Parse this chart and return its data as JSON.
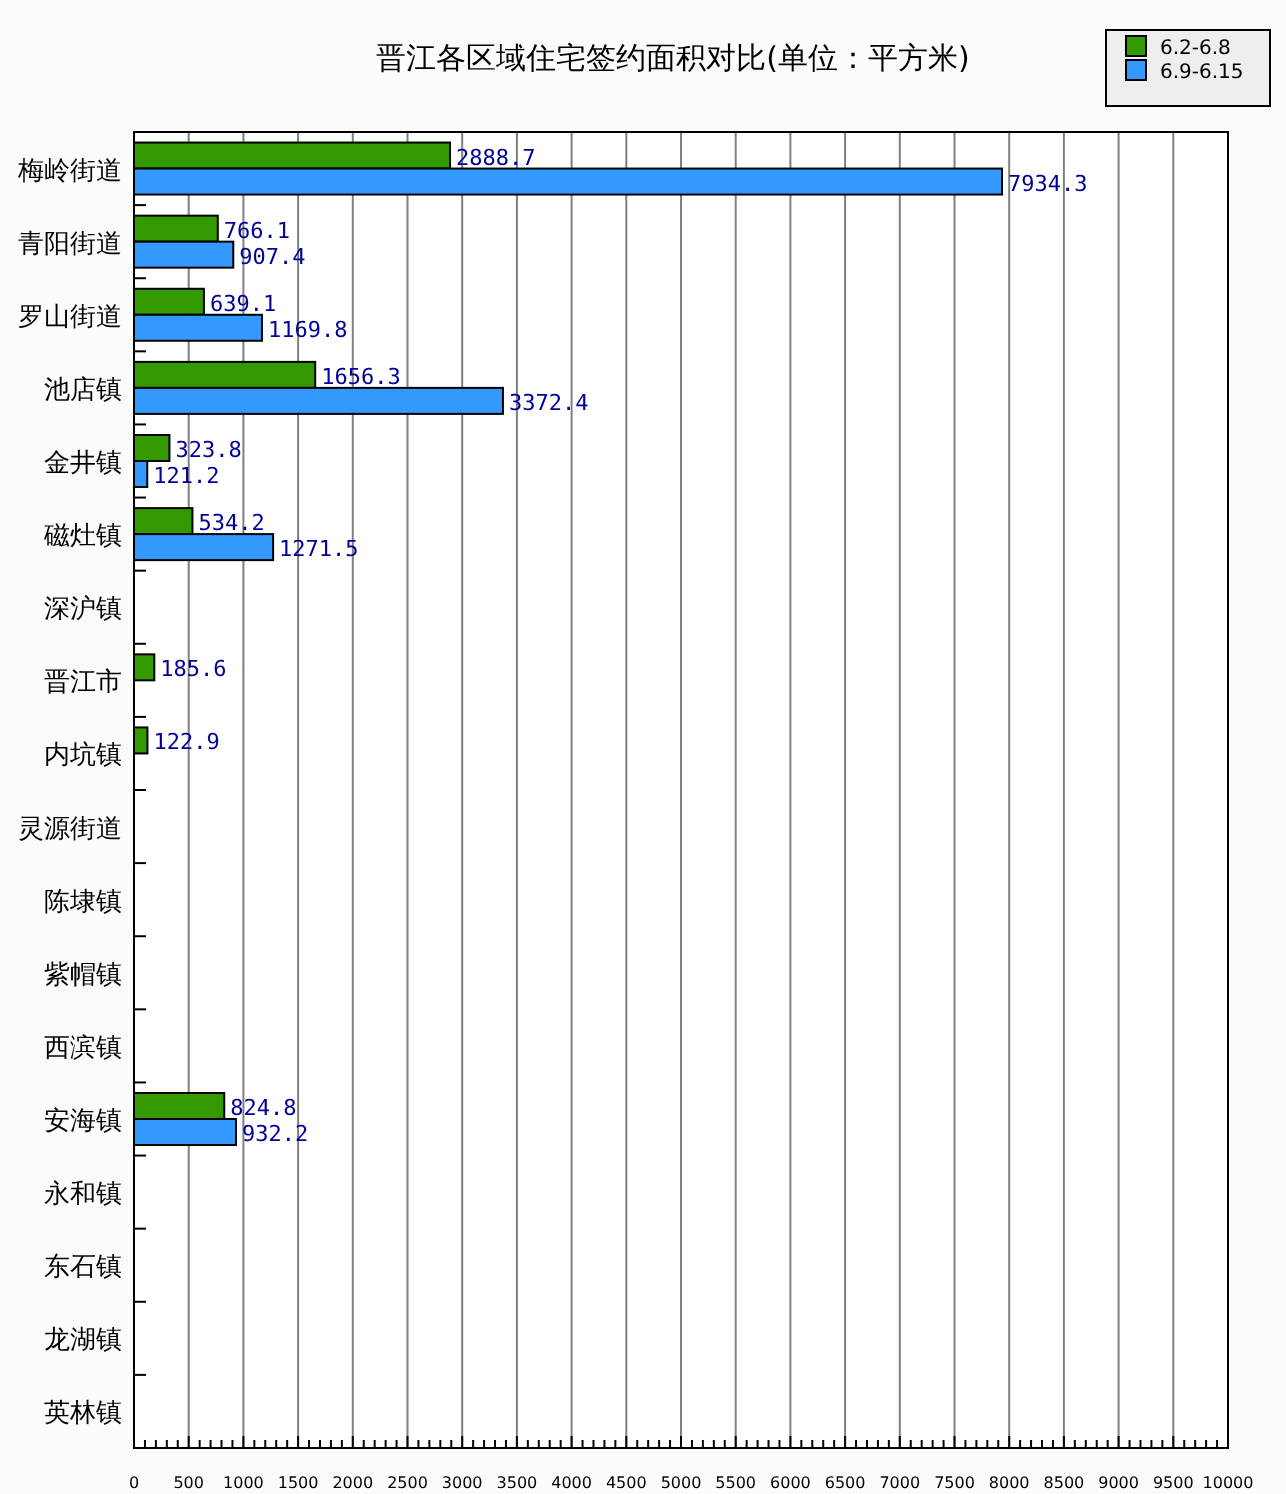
{
  "chart_data": {
    "type": "bar",
    "orientation": "horizontal",
    "title": "晋江各区域住宅签约面积对比(单位：平方米)",
    "categories": [
      "梅岭街道",
      "青阳街道",
      "罗山街道",
      "池店镇",
      "金井镇",
      "磁灶镇",
      "深沪镇",
      "晋江市",
      "内坑镇",
      "灵源街道",
      "陈埭镇",
      "紫帽镇",
      "西滨镇",
      "安海镇",
      "永和镇",
      "东石镇",
      "龙湖镇",
      "英林镇"
    ],
    "series": [
      {
        "name": "6.2-6.8",
        "color": "#339900",
        "values": [
          2888.7,
          766.1,
          639.1,
          1656.3,
          323.8,
          534.2,
          null,
          185.6,
          122.9,
          null,
          null,
          null,
          null,
          824.8,
          null,
          null,
          null,
          null
        ]
      },
      {
        "name": "6.9-6.15",
        "color": "#3399ff",
        "values": [
          7934.3,
          907.4,
          1169.8,
          3372.4,
          121.2,
          1271.5,
          null,
          null,
          null,
          null,
          null,
          null,
          null,
          932.2,
          null,
          null,
          null,
          null
        ]
      }
    ],
    "xlim": [
      0,
      10000
    ],
    "xticks": [
      0,
      500,
      1000,
      1500,
      2000,
      2500,
      3000,
      3500,
      4000,
      4500,
      5000,
      5500,
      6000,
      6500,
      7000,
      7500,
      8000,
      8500,
      9000,
      9500,
      10000
    ],
    "grid": "x",
    "legend": "top right",
    "data_labels": true
  }
}
